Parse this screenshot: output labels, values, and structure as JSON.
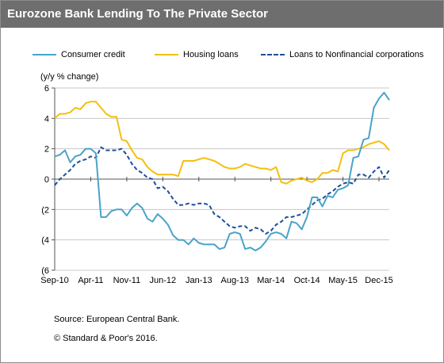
{
  "chart_data": {
    "type": "line",
    "title": "Eurozone Bank Lending To The Private Sector",
    "ylabel": "(y/y % change)",
    "xlabel": "",
    "ylim": [
      -6,
      6
    ],
    "y_ticks": [
      6,
      4,
      2,
      0,
      -2,
      -4,
      -6
    ],
    "y_tick_labels": [
      "6",
      "4",
      "2",
      "0",
      "(2",
      "(4",
      "(6"
    ],
    "x_range": [
      "2010-09",
      "2016-02"
    ],
    "x_ticks": [
      "2010-09",
      "2011-04",
      "2011-11",
      "2012-06",
      "2013-01",
      "2013-08",
      "2014-03",
      "2014-10",
      "2015-05",
      "2015-12"
    ],
    "x_tick_labels": [
      "Sep-10",
      "Apr-11",
      "Nov-11",
      "Jun-12",
      "Jan-13",
      "Aug-13",
      "Mar-14",
      "Oct-14",
      "May-15",
      "Dec-15"
    ],
    "grid": "horizontal",
    "legend_position": "top",
    "series": [
      {
        "name": "Consumer credit",
        "color": "#4aa3c8",
        "style": "solid",
        "points": [
          [
            "2010-09",
            1.5
          ],
          [
            "2010-10",
            1.6
          ],
          [
            "2010-11",
            1.9
          ],
          [
            "2010-12",
            1.1
          ],
          [
            "2011-01",
            1.5
          ],
          [
            "2011-02",
            1.6
          ],
          [
            "2011-03",
            2.0
          ],
          [
            "2011-04",
            2.0
          ],
          [
            "2011-05",
            1.7
          ],
          [
            "2011-06",
            -2.5
          ],
          [
            "2011-07",
            -2.5
          ],
          [
            "2011-08",
            -2.1
          ],
          [
            "2011-09",
            -2.0
          ],
          [
            "2011-10",
            -2.0
          ],
          [
            "2011-11",
            -2.4
          ],
          [
            "2011-12",
            -1.9
          ],
          [
            "2012-01",
            -1.6
          ],
          [
            "2012-02",
            -1.9
          ],
          [
            "2012-03",
            -2.6
          ],
          [
            "2012-04",
            -2.8
          ],
          [
            "2012-05",
            -2.3
          ],
          [
            "2012-06",
            -2.6
          ],
          [
            "2012-07",
            -3.0
          ],
          [
            "2012-08",
            -3.7
          ],
          [
            "2012-09",
            -4.0
          ],
          [
            "2012-10",
            -4.0
          ],
          [
            "2012-11",
            -4.3
          ],
          [
            "2012-12",
            -3.9
          ],
          [
            "2013-01",
            -4.2
          ],
          [
            "2013-02",
            -4.3
          ],
          [
            "2013-03",
            -4.3
          ],
          [
            "2013-04",
            -4.3
          ],
          [
            "2013-05",
            -4.6
          ],
          [
            "2013-06",
            -4.5
          ],
          [
            "2013-07",
            -3.6
          ],
          [
            "2013-08",
            -3.5
          ],
          [
            "2013-09",
            -3.6
          ],
          [
            "2013-10",
            -4.6
          ],
          [
            "2013-11",
            -4.5
          ],
          [
            "2013-12",
            -4.7
          ],
          [
            "2014-01",
            -4.5
          ],
          [
            "2014-02",
            -4.1
          ],
          [
            "2014-03",
            -3.6
          ],
          [
            "2014-04",
            -3.5
          ],
          [
            "2014-05",
            -3.6
          ],
          [
            "2014-06",
            -3.9
          ],
          [
            "2014-07",
            -2.8
          ],
          [
            "2014-08",
            -2.9
          ],
          [
            "2014-09",
            -3.3
          ],
          [
            "2014-10",
            -2.5
          ],
          [
            "2014-11",
            -1.2
          ],
          [
            "2014-12",
            -1.2
          ],
          [
            "2015-01",
            -1.8
          ],
          [
            "2015-02",
            -1.1
          ],
          [
            "2015-03",
            -1.2
          ],
          [
            "2015-04",
            -0.7
          ],
          [
            "2015-05",
            -0.6
          ],
          [
            "2015-06",
            -0.4
          ],
          [
            "2015-07",
            1.4
          ],
          [
            "2015-08",
            1.5
          ],
          [
            "2015-09",
            2.6
          ],
          [
            "2015-10",
            2.7
          ],
          [
            "2015-11",
            4.7
          ],
          [
            "2015-12",
            5.3
          ],
          [
            "2016-01",
            5.7
          ],
          [
            "2016-02",
            5.2
          ]
        ]
      },
      {
        "name": "Housing loans",
        "color": "#f5bf0f",
        "style": "solid",
        "points": [
          [
            "2010-09",
            4.0
          ],
          [
            "2010-10",
            4.3
          ],
          [
            "2010-11",
            4.3
          ],
          [
            "2010-12",
            4.4
          ],
          [
            "2011-01",
            4.7
          ],
          [
            "2011-02",
            4.6
          ],
          [
            "2011-03",
            5.0
          ],
          [
            "2011-04",
            5.1
          ],
          [
            "2011-05",
            5.1
          ],
          [
            "2011-06",
            4.7
          ],
          [
            "2011-07",
            4.3
          ],
          [
            "2011-08",
            4.1
          ],
          [
            "2011-09",
            4.1
          ],
          [
            "2011-10",
            2.6
          ],
          [
            "2011-11",
            2.5
          ],
          [
            "2011-12",
            1.9
          ],
          [
            "2012-01",
            1.4
          ],
          [
            "2012-02",
            1.3
          ],
          [
            "2012-03",
            0.8
          ],
          [
            "2012-04",
            0.5
          ],
          [
            "2012-05",
            0.3
          ],
          [
            "2012-06",
            0.3
          ],
          [
            "2012-07",
            0.3
          ],
          [
            "2012-08",
            0.3
          ],
          [
            "2012-09",
            0.2
          ],
          [
            "2012-10",
            1.2
          ],
          [
            "2012-11",
            1.2
          ],
          [
            "2012-12",
            1.2
          ],
          [
            "2013-01",
            1.3
          ],
          [
            "2013-02",
            1.4
          ],
          [
            "2013-03",
            1.3
          ],
          [
            "2013-04",
            1.2
          ],
          [
            "2013-05",
            1.0
          ],
          [
            "2013-06",
            0.8
          ],
          [
            "2013-07",
            0.7
          ],
          [
            "2013-08",
            0.7
          ],
          [
            "2013-09",
            0.8
          ],
          [
            "2013-10",
            1.0
          ],
          [
            "2013-11",
            0.9
          ],
          [
            "2013-12",
            0.8
          ],
          [
            "2014-01",
            0.7
          ],
          [
            "2014-02",
            0.7
          ],
          [
            "2014-03",
            0.6
          ],
          [
            "2014-04",
            0.8
          ],
          [
            "2014-05",
            -0.2
          ],
          [
            "2014-06",
            -0.3
          ],
          [
            "2014-07",
            -0.1
          ],
          [
            "2014-08",
            0.0
          ],
          [
            "2014-09",
            0.1
          ],
          [
            "2014-10",
            -0.1
          ],
          [
            "2014-11",
            -0.2
          ],
          [
            "2014-12",
            0.0
          ],
          [
            "2015-01",
            0.4
          ],
          [
            "2015-02",
            0.4
          ],
          [
            "2015-03",
            0.6
          ],
          [
            "2015-04",
            0.5
          ],
          [
            "2015-05",
            1.7
          ],
          [
            "2015-06",
            1.9
          ],
          [
            "2015-07",
            1.9
          ],
          [
            "2015-08",
            2.0
          ],
          [
            "2015-09",
            2.1
          ],
          [
            "2015-10",
            2.3
          ],
          [
            "2015-11",
            2.4
          ],
          [
            "2015-12",
            2.5
          ],
          [
            "2016-01",
            2.3
          ],
          [
            "2016-02",
            1.9
          ]
        ]
      },
      {
        "name": "Loans to Nonfinancial corporations",
        "color": "#1f4e9a",
        "style": "dashed",
        "points": [
          [
            "2010-09",
            -0.4
          ],
          [
            "2010-10",
            0.0
          ],
          [
            "2010-11",
            0.3
          ],
          [
            "2010-12",
            0.6
          ],
          [
            "2011-01",
            1.0
          ],
          [
            "2011-02",
            1.2
          ],
          [
            "2011-03",
            1.3
          ],
          [
            "2011-04",
            1.5
          ],
          [
            "2011-05",
            1.4
          ],
          [
            "2011-06",
            2.1
          ],
          [
            "2011-07",
            1.9
          ],
          [
            "2011-08",
            1.9
          ],
          [
            "2011-09",
            1.9
          ],
          [
            "2011-10",
            2.0
          ],
          [
            "2011-11",
            1.6
          ],
          [
            "2011-12",
            1.0
          ],
          [
            "2012-01",
            0.6
          ],
          [
            "2012-02",
            0.4
          ],
          [
            "2012-03",
            0.1
          ],
          [
            "2012-04",
            0.0
          ],
          [
            "2012-05",
            -0.6
          ],
          [
            "2012-06",
            -0.5
          ],
          [
            "2012-07",
            -0.8
          ],
          [
            "2012-08",
            -1.3
          ],
          [
            "2012-09",
            -1.7
          ],
          [
            "2012-10",
            -1.7
          ],
          [
            "2012-11",
            -1.6
          ],
          [
            "2012-12",
            -1.7
          ],
          [
            "2013-01",
            -1.6
          ],
          [
            "2013-02",
            -1.6
          ],
          [
            "2013-03",
            -1.7
          ],
          [
            "2013-04",
            -2.3
          ],
          [
            "2013-05",
            -2.5
          ],
          [
            "2013-06",
            -2.8
          ],
          [
            "2013-07",
            -3.1
          ],
          [
            "2013-08",
            -3.2
          ],
          [
            "2013-09",
            -3.1
          ],
          [
            "2013-10",
            -3.1
          ],
          [
            "2013-11",
            -3.4
          ],
          [
            "2013-12",
            -3.2
          ],
          [
            "2014-01",
            -3.3
          ],
          [
            "2014-02",
            -3.6
          ],
          [
            "2014-03",
            -3.4
          ],
          [
            "2014-04",
            -3.0
          ],
          [
            "2014-05",
            -2.8
          ],
          [
            "2014-06",
            -2.5
          ],
          [
            "2014-07",
            -2.5
          ],
          [
            "2014-08",
            -2.4
          ],
          [
            "2014-09",
            -2.3
          ],
          [
            "2014-10",
            -2.0
          ],
          [
            "2014-11",
            -1.7
          ],
          [
            "2014-12",
            -1.4
          ],
          [
            "2015-01",
            -1.3
          ],
          [
            "2015-02",
            -1.0
          ],
          [
            "2015-03",
            -0.8
          ],
          [
            "2015-04",
            -0.5
          ],
          [
            "2015-05",
            -0.3
          ],
          [
            "2015-06",
            -0.2
          ],
          [
            "2015-07",
            -0.3
          ],
          [
            "2015-08",
            0.3
          ],
          [
            "2015-09",
            0.3
          ],
          [
            "2015-10",
            0.1
          ],
          [
            "2015-11",
            0.5
          ],
          [
            "2015-12",
            0.8
          ],
          [
            "2016-01",
            0.1
          ],
          [
            "2016-02",
            0.6
          ]
        ]
      }
    ]
  },
  "footer": {
    "source": "Source: European Central Bank.",
    "copyright": "© Standard & Poor's 2016."
  }
}
